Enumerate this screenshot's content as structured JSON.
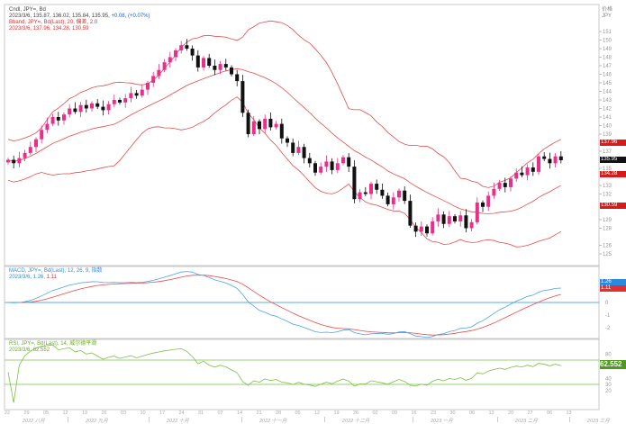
{
  "chart_data": [
    {
      "type": "candlestick",
      "title": "Cndl, JPY=, Bd",
      "legend": {
        "line1": "Cndl, JPY=, Bd",
        "line2_values": "2023/3/6, 135.87, 136.02, 135.84, 135.95,",
        "line2_change": "+0.08, (+0.07%)",
        "bband_title": "Bband, JPY=, Bd(Last), 20, 偏差, 2.0",
        "bband_values": "2023/3/6, 137.96, 134.28, 130.59"
      },
      "bband_period": 20,
      "bband_mult": 2.0,
      "ylim": [
        124,
        154
      ],
      "y_axis_header": "价格",
      "y_axis_unit": "JPY",
      "y_ticks": [
        151,
        150,
        149,
        148,
        147,
        146,
        145,
        144,
        143,
        142,
        141,
        140,
        139,
        137,
        135,
        133,
        132,
        129,
        128,
        126,
        125
      ],
      "price_tags": [
        {
          "label": "137.96",
          "value": 137.96,
          "color": "#d91a1a"
        },
        {
          "label": "135.95",
          "value": 135.95,
          "color": "#111111"
        },
        {
          "label": "134.28",
          "value": 134.28,
          "color": "#d91a1a"
        },
        {
          "label": "130.59",
          "value": 130.59,
          "color": "#d91a1a"
        }
      ],
      "closes": [
        136.0,
        135.6,
        136.2,
        136.8,
        137.5,
        138.4,
        139.5,
        140.2,
        141.0,
        140.6,
        141.3,
        142.0,
        141.6,
        142.4,
        142.0,
        142.6,
        142.2,
        141.8,
        142.5,
        143.0,
        142.7,
        143.2,
        143.8,
        143.5,
        144.2,
        145.0,
        145.8,
        146.5,
        147.4,
        148.0,
        148.8,
        149.4,
        149.0,
        148.2,
        146.8,
        147.9,
        147.0,
        146.5,
        147.2,
        146.8,
        146.0,
        145.2,
        141.5,
        139.0,
        140.5,
        139.6,
        140.8,
        139.8,
        140.2,
        138.5,
        138.0,
        136.8,
        137.5,
        136.2,
        135.6,
        134.5,
        135.2,
        135.8,
        134.8,
        135.6,
        136.3,
        135.2,
        131.4,
        132.2,
        132.0,
        133.2,
        132.5,
        131.8,
        130.8,
        131.6,
        132.4,
        131.2,
        128.3,
        127.6,
        128.2,
        127.4,
        128.8,
        129.6,
        128.5,
        129.4,
        128.8,
        129.5,
        128.0,
        128.7,
        131.0,
        130.5,
        131.8,
        132.6,
        133.3,
        132.8,
        133.8,
        134.5,
        134.2,
        135.1,
        134.6,
        136.4,
        136.1,
        135.6,
        136.4,
        135.95
      ],
      "colors": {
        "up": "#e8308a",
        "down": "#111111",
        "band": "#e84a4a"
      }
    },
    {
      "type": "line",
      "title": "MACD, JPY=, Bd(Last), 12, 26, 9, 指数",
      "legend_date": "2023/3/6,",
      "macd_label": "1.26",
      "signal_label": "1.11",
      "params": [
        12,
        26,
        9
      ],
      "y_ticks": [
        "0",
        "-1",
        "-2"
      ],
      "y_tick_values": [
        0,
        -1,
        -2
      ],
      "colors": {
        "macd": "#4aa3e8",
        "signal": "#e84a4a",
        "zero": "#5aaee8"
      }
    },
    {
      "type": "line",
      "title": "RSI, JPY=, Bd(Last), 14, 威尔德平滑",
      "legend_values": "2023/3/6, 62.552",
      "value_label": "62.552",
      "period": 14,
      "levels": [
        70,
        30
      ],
      "y_ticks": [
        "80",
        "40",
        "30",
        "20"
      ],
      "y_tick_values": [
        80,
        40,
        30,
        20
      ],
      "colors": {
        "rsi": "#7ac143"
      }
    }
  ],
  "x_axis": {
    "day_labels": [
      "22",
      "29",
      "05",
      "12",
      "19",
      "26",
      "03",
      "10",
      "17",
      "24",
      "31",
      "07",
      "14",
      "21",
      "28",
      "05",
      "12",
      "19",
      "26",
      "02",
      "09",
      "16",
      "23",
      "30",
      "06",
      "13",
      "20",
      "27",
      "06",
      "13"
    ],
    "month_labels": [
      "2022 八月",
      "2022 九月",
      "2022 十月",
      "2022 十一月",
      "2022 十二月",
      "2023 一月",
      "2023 二月",
      "2023 三月"
    ]
  }
}
